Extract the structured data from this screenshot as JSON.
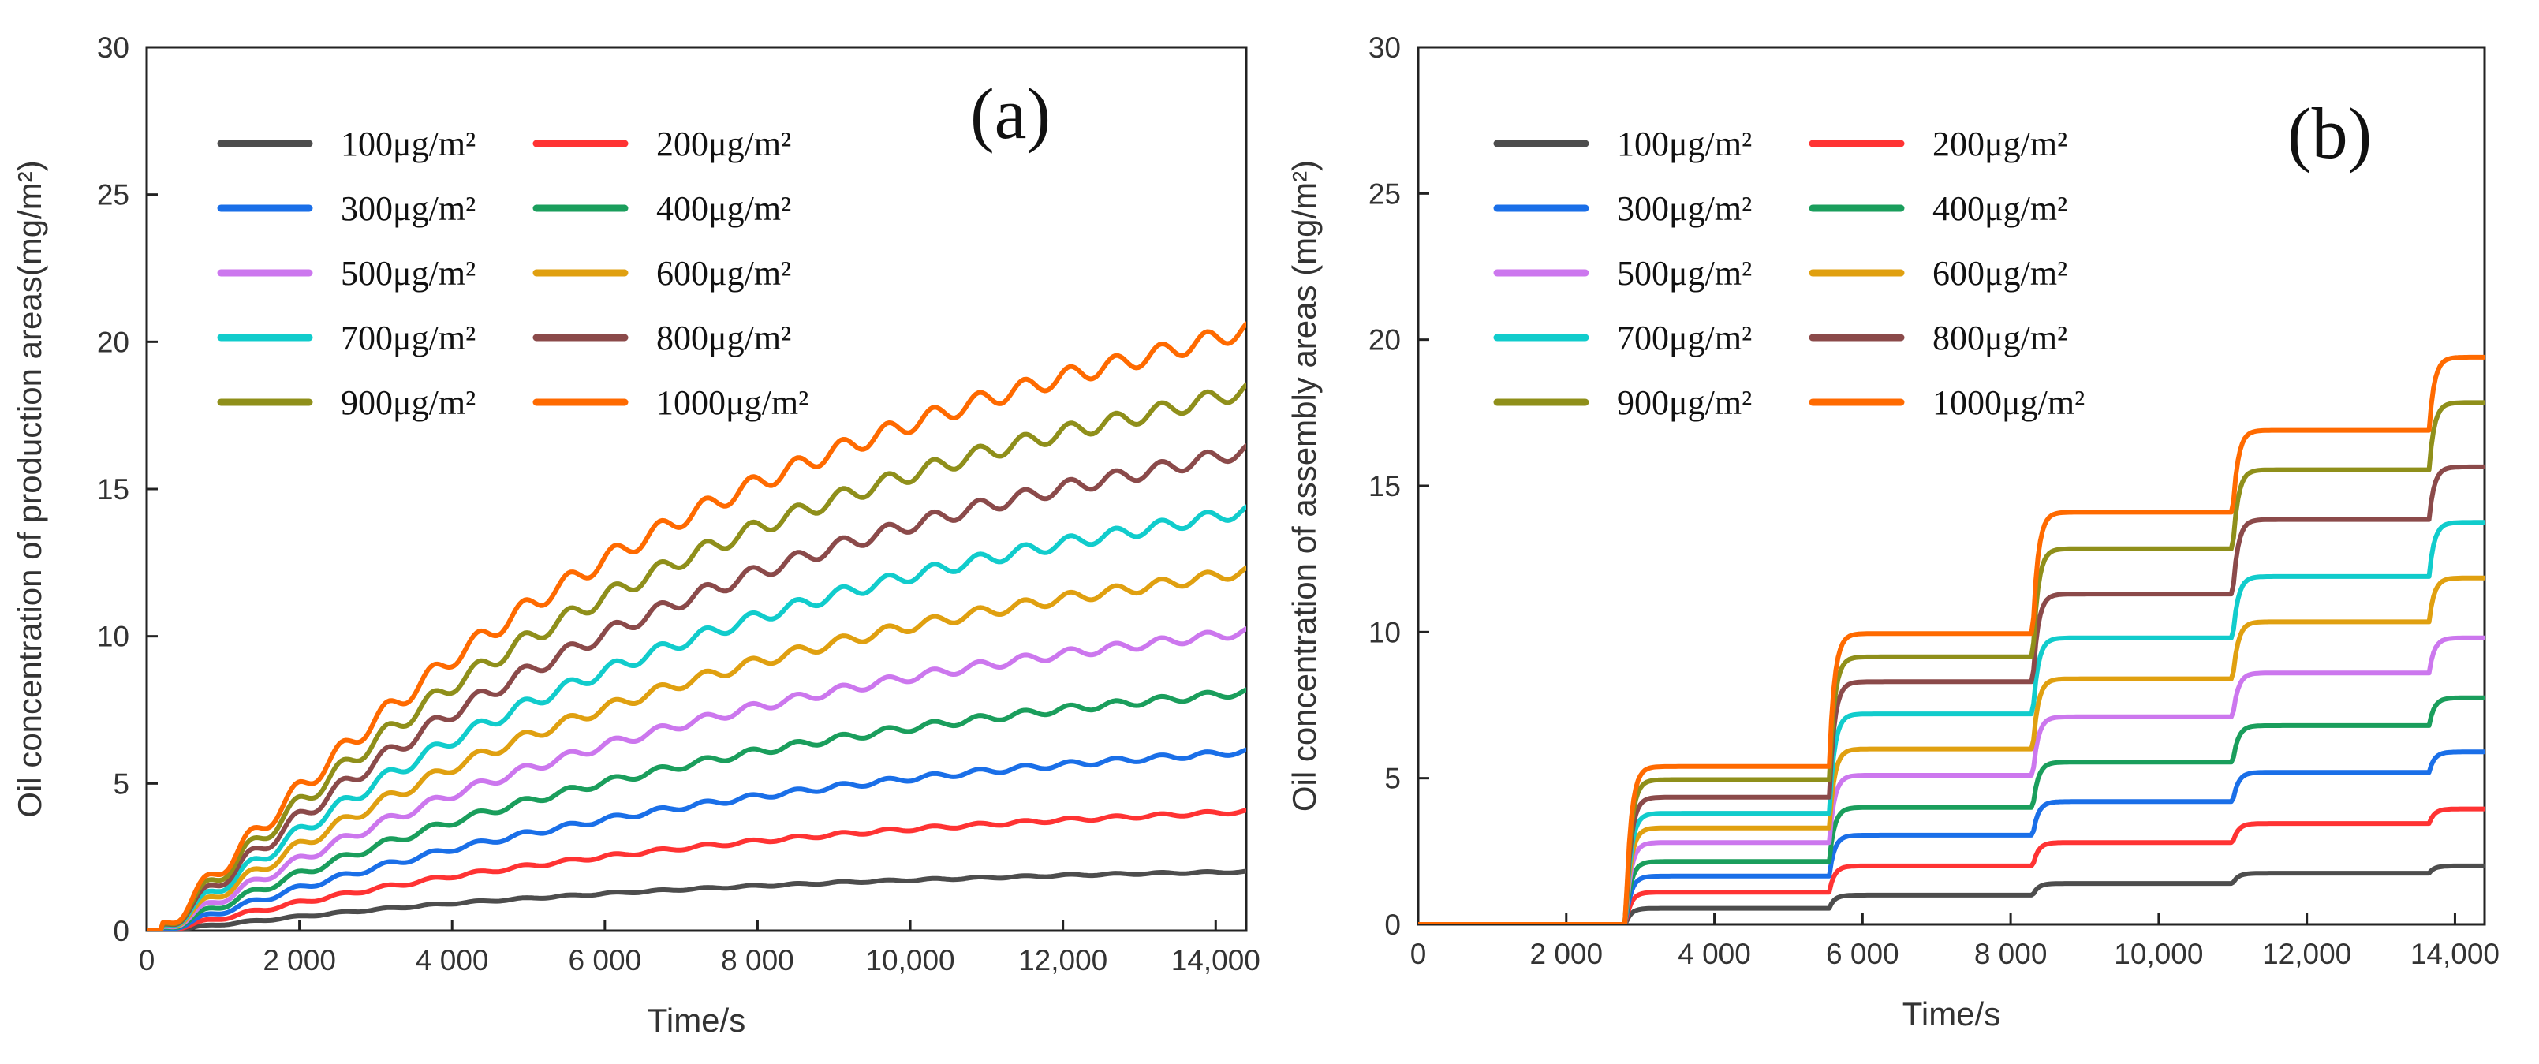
{
  "chart_data": [
    {
      "type": "line",
      "panel_label": "(a)",
      "xlabel": "Time/s",
      "ylabel": "Oil concentration of production areas(mg/m²)",
      "xlim": [
        0,
        14400
      ],
      "ylim": [
        0,
        30
      ],
      "xticks": [
        0,
        2000,
        4000,
        6000,
        8000,
        10000,
        12000,
        14000
      ],
      "xtick_labels": [
        "0",
        "2 000",
        "4 000",
        "6 000",
        "8 000",
        "10,000",
        "12,000",
        "14,000"
      ],
      "yticks": [
        0,
        5,
        10,
        15,
        20,
        25,
        30
      ],
      "ytick_labels": [
        "0",
        "5",
        "10",
        "15",
        "20",
        "25",
        "30"
      ],
      "legend_position": "top-left",
      "x": [
        0,
        200,
        1000,
        2000,
        3000,
        4000,
        5000,
        6000,
        7000,
        8000,
        9000,
        10000,
        11000,
        12000,
        13000,
        14400
      ],
      "series": [
        {
          "name": "100μg/m²",
          "color": "#4d4d4d",
          "values": [
            0,
            0,
            0.22,
            0.48,
            0.72,
            0.93,
            1.1,
            1.26,
            1.4,
            1.52,
            1.63,
            1.72,
            1.8,
            1.88,
            1.94,
            2.0
          ]
        },
        {
          "name": "200μg/m²",
          "color": "#ff3333",
          "values": [
            0,
            0,
            0.44,
            0.96,
            1.43,
            1.85,
            2.2,
            2.52,
            2.8,
            3.04,
            3.26,
            3.45,
            3.61,
            3.76,
            3.88,
            4.05
          ]
        },
        {
          "name": "300μg/m²",
          "color": "#1a6fe8",
          "values": [
            0,
            0,
            0.66,
            1.45,
            2.15,
            2.78,
            3.3,
            3.78,
            4.2,
            4.56,
            4.88,
            5.17,
            5.42,
            5.64,
            5.83,
            6.08
          ]
        },
        {
          "name": "400μg/m²",
          "color": "#1a9e5c",
          "values": [
            0,
            0,
            0.88,
            1.93,
            2.87,
            3.7,
            4.41,
            5.04,
            5.6,
            6.09,
            6.51,
            6.89,
            7.22,
            7.52,
            7.77,
            8.1
          ]
        },
        {
          "name": "500μg/m²",
          "color": "#cc77ee",
          "values": [
            0,
            0,
            1.1,
            2.41,
            3.59,
            4.63,
            5.51,
            6.3,
            7.0,
            7.61,
            8.14,
            8.61,
            9.03,
            9.4,
            9.71,
            10.15
          ]
        },
        {
          "name": "600μg/m²",
          "color": "#e0a010",
          "values": [
            0,
            0,
            1.32,
            2.89,
            4.3,
            5.55,
            6.62,
            7.56,
            8.4,
            9.13,
            9.77,
            10.34,
            10.84,
            11.28,
            11.65,
            12.2
          ]
        },
        {
          "name": "700μg/m²",
          "color": "#11cccc",
          "values": [
            0,
            0,
            1.54,
            3.37,
            5.02,
            6.48,
            7.72,
            8.82,
            9.8,
            10.65,
            11.4,
            12.06,
            12.64,
            13.16,
            13.6,
            14.25
          ]
        },
        {
          "name": "800μg/m²",
          "color": "#8b4a4a",
          "values": [
            0,
            0,
            1.76,
            3.86,
            5.74,
            7.4,
            8.82,
            10.08,
            11.2,
            12.17,
            13.02,
            13.78,
            14.45,
            15.04,
            15.54,
            16.3
          ]
        },
        {
          "name": "900μg/m²",
          "color": "#8f8f1a",
          "values": [
            0,
            0,
            1.98,
            4.34,
            6.46,
            8.33,
            9.93,
            11.34,
            12.6,
            13.69,
            14.65,
            15.5,
            16.26,
            16.92,
            17.48,
            18.35
          ]
        },
        {
          "name": "1000μg/m²",
          "color": "#ff6a00",
          "values": [
            0,
            0,
            2.2,
            4.82,
            7.17,
            9.25,
            11.03,
            12.6,
            14.0,
            15.21,
            16.28,
            17.22,
            18.06,
            18.8,
            19.43,
            20.4
          ]
        }
      ]
    },
    {
      "type": "line",
      "panel_label": "(b)",
      "xlabel": "Time/s",
      "ylabel": "Oil concentration of assembly  areas (mg/m²)",
      "xlim": [
        0,
        14400
      ],
      "ylim": [
        0,
        30
      ],
      "xticks": [
        0,
        2000,
        4000,
        6000,
        8000,
        10000,
        12000,
        14000
      ],
      "xtick_labels": [
        "0",
        "2 000",
        "4 000",
        "6 000",
        "8 000",
        "10,000",
        "12,000",
        "14,000"
      ],
      "yticks": [
        0,
        5,
        10,
        15,
        20,
        25,
        30
      ],
      "ytick_labels": [
        "0",
        "5",
        "10",
        "15",
        "20",
        "25",
        "30"
      ],
      "legend_position": "top-left",
      "step_times": [
        2800,
        5550,
        8300,
        11000,
        13650
      ],
      "series": [
        {
          "name": "100μg/m²",
          "color": "#4d4d4d",
          "levels": [
            0,
            0.55,
            1.0,
            1.4,
            1.75,
            2.0
          ]
        },
        {
          "name": "200μg/m²",
          "color": "#ff3333",
          "levels": [
            0,
            1.1,
            2.0,
            2.8,
            3.45,
            3.95
          ]
        },
        {
          "name": "300μg/m²",
          "color": "#1a6fe8",
          "levels": [
            0,
            1.65,
            3.05,
            4.2,
            5.2,
            5.9
          ]
        },
        {
          "name": "400μg/m²",
          "color": "#1a9e5c",
          "levels": [
            0,
            2.15,
            4.0,
            5.55,
            6.8,
            7.75
          ]
        },
        {
          "name": "500μg/m²",
          "color": "#cc77ee",
          "levels": [
            0,
            2.8,
            5.1,
            7.1,
            8.6,
            9.8
          ]
        },
        {
          "name": "600μg/m²",
          "color": "#e0a010",
          "levels": [
            0,
            3.3,
            6.0,
            8.4,
            10.35,
            11.85
          ]
        },
        {
          "name": "700μg/m²",
          "color": "#11cccc",
          "levels": [
            0,
            3.8,
            7.2,
            9.8,
            11.9,
            13.75
          ]
        },
        {
          "name": "800μg/m²",
          "color": "#8b4a4a",
          "levels": [
            0,
            4.35,
            8.3,
            11.3,
            13.85,
            15.65
          ]
        },
        {
          "name": "900μg/m²",
          "color": "#8f8f1a",
          "levels": [
            0,
            4.95,
            9.15,
            12.85,
            15.55,
            17.85
          ]
        },
        {
          "name": "1000μg/m²",
          "color": "#ff6a00",
          "levels": [
            0,
            5.4,
            9.95,
            14.1,
            16.9,
            19.4
          ]
        }
      ]
    }
  ]
}
